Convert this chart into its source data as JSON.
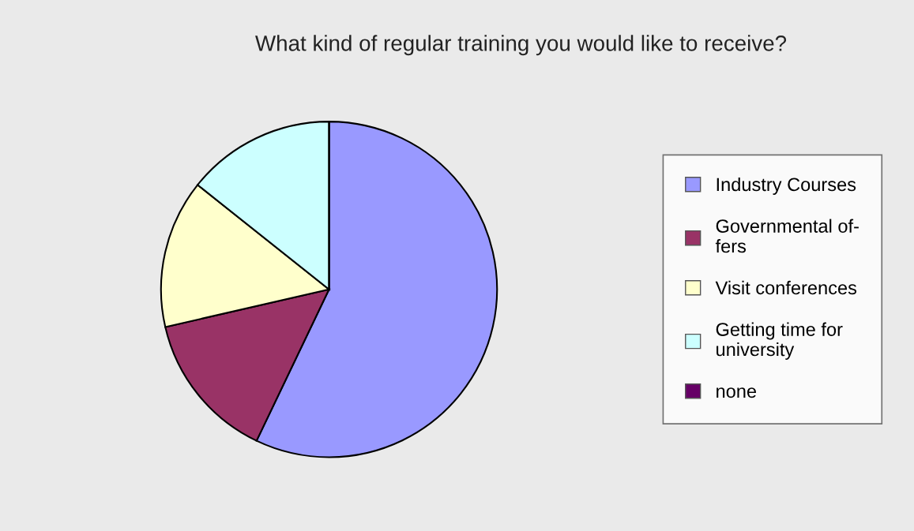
{
  "chart_data": {
    "type": "pie",
    "title": "What kind of regular training you would like to receive?",
    "categories": [
      "Industry Courses",
      "Governmental of-\nfers",
      "Visit conferences",
      "Getting time for\nuniversity",
      "none"
    ],
    "values": [
      57.1,
      14.3,
      14.3,
      14.3,
      0
    ],
    "colors": [
      "#9999ff",
      "#993366",
      "#ffffcc",
      "#ccffff",
      "#660066"
    ],
    "legend": "right"
  }
}
